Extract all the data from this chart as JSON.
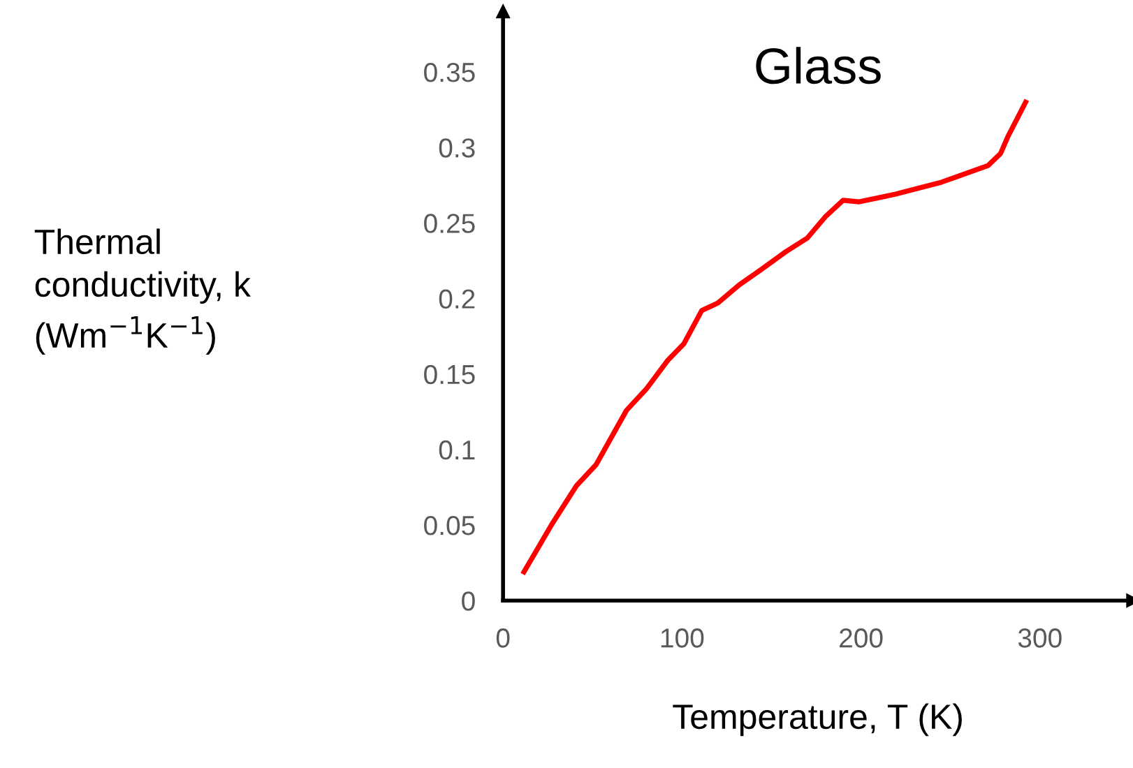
{
  "chart_data": {
    "type": "line",
    "title": "Glass",
    "xlabel": "Temperature, T (K)",
    "ylabel": "Thermal\nconductivity, k\n(Wm$^{−1}$K$^{−1}$)",
    "x": [
      11.7,
      27,
      41,
      52,
      69,
      80,
      92,
      101,
      111,
      120,
      132,
      144,
      158,
      170,
      180,
      190,
      199,
      219,
      245,
      271,
      278,
      282,
      292
    ],
    "series": [
      {
        "color": "#ff0000",
        "values": [
          0.019,
          0.05,
          0.076,
          0.09,
          0.126,
          0.14,
          0.159,
          0.17,
          0.192,
          0.197,
          0.209,
          0.219,
          0.231,
          0.24,
          0.254,
          0.265,
          0.264,
          0.269,
          0.277,
          0.288,
          0.296,
          0.307,
          0.33
        ]
      }
    ],
    "xlim": [
      0,
      352
    ],
    "ylim": [
      0,
      0.39
    ],
    "xticks": [
      0,
      100,
      200,
      300
    ],
    "yticks": [
      0,
      0.05,
      0.1,
      0.15,
      0.2,
      0.25,
      0.3,
      0.35
    ],
    "grid": false,
    "legend": false,
    "marker": "none",
    "line_style": "solid"
  }
}
